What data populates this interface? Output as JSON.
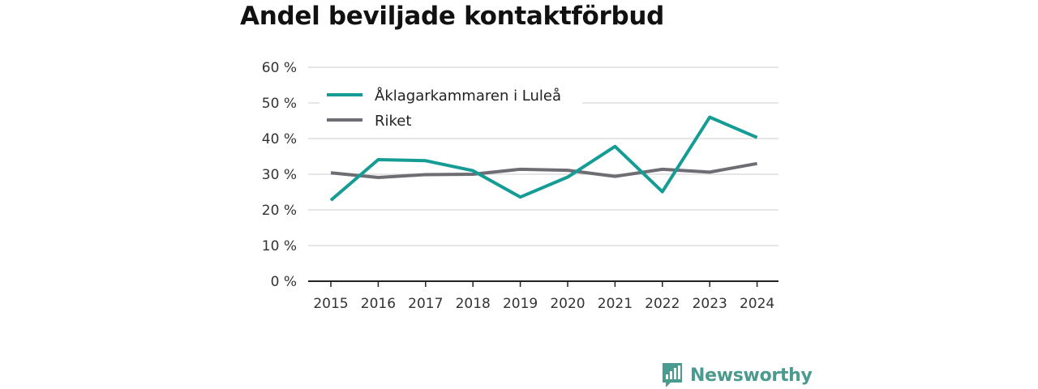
{
  "title": "Andel beviljade kontaktförbud",
  "brand": {
    "name": "Newsworthy",
    "color": "#4a9a8f",
    "icon": "bar-chart-speech-bubble-icon"
  },
  "chart_data": {
    "type": "line",
    "title": "Andel beviljade kontaktförbud",
    "xlabel": "",
    "ylabel": "",
    "x": [
      2015,
      2016,
      2017,
      2018,
      2019,
      2020,
      2021,
      2022,
      2023,
      2024
    ],
    "x_tick_labels": [
      "2015",
      "2016",
      "2017",
      "2018",
      "2019",
      "2020",
      "2021",
      "2022",
      "2023",
      "2024"
    ],
    "y_ticks": [
      0,
      10,
      20,
      30,
      40,
      50,
      60
    ],
    "y_tick_labels": [
      "0 %",
      "10 %",
      "20 %",
      "30 %",
      "40 %",
      "50 %",
      "60 %"
    ],
    "ylim": [
      0,
      60
    ],
    "grid": true,
    "legend_position": "top-left",
    "series": [
      {
        "name": "Åklagarkammaren i Luleå",
        "color": "#159c94",
        "values": [
          22.7,
          34.1,
          33.8,
          31.0,
          23.6,
          29.2,
          37.8,
          25.1,
          46.0,
          40.3
        ]
      },
      {
        "name": "Riket",
        "color": "#6e6d74",
        "values": [
          30.4,
          29.1,
          29.9,
          30.0,
          31.4,
          31.1,
          29.4,
          31.4,
          30.6,
          33.0
        ]
      }
    ]
  }
}
